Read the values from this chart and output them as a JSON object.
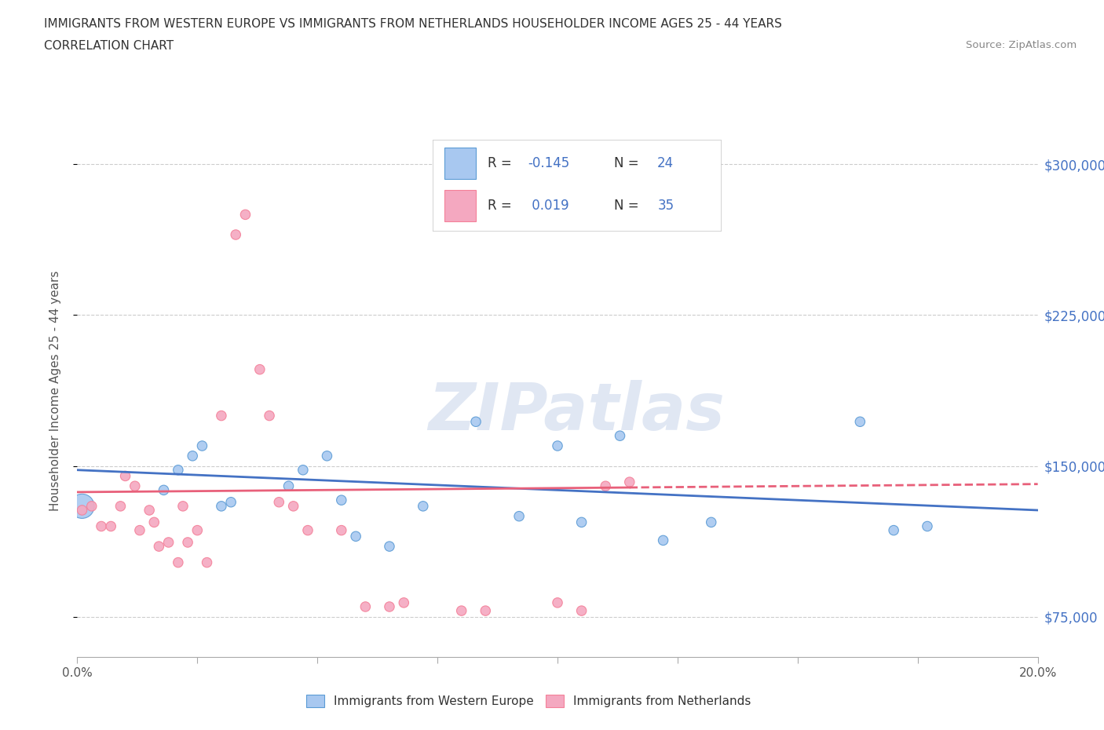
{
  "title_line1": "IMMIGRANTS FROM WESTERN EUROPE VS IMMIGRANTS FROM NETHERLANDS HOUSEHOLDER INCOME AGES 25 - 44 YEARS",
  "title_line2": "CORRELATION CHART",
  "source_text": "Source: ZipAtlas.com",
  "ylabel": "Householder Income Ages 25 - 44 years",
  "xlim": [
    0.0,
    0.2
  ],
  "ylim": [
    55000,
    320000
  ],
  "yticks": [
    75000,
    150000,
    225000,
    300000
  ],
  "xticks": [
    0.0,
    0.025,
    0.05,
    0.075,
    0.1,
    0.125,
    0.15,
    0.175,
    0.2
  ],
  "xtick_labels_ends": {
    "0.0": "0.0%",
    "0.20": "20.0%"
  },
  "ytick_labels": [
    "$75,000",
    "$150,000",
    "$225,000",
    "$300,000"
  ],
  "color_blue": "#a8c8f0",
  "color_pink": "#f4a8c0",
  "edge_blue": "#5b9bd5",
  "edge_pink": "#f48099",
  "line_blue_color": "#4472c4",
  "line_pink_color": "#e8607a",
  "legend_r_blue": "-0.145",
  "legend_n_blue": "24",
  "legend_r_pink": "0.019",
  "legend_n_pink": "35",
  "blue_x": [
    0.001,
    0.018,
    0.021,
    0.024,
    0.026,
    0.03,
    0.032,
    0.044,
    0.047,
    0.052,
    0.055,
    0.058,
    0.065,
    0.072,
    0.083,
    0.092,
    0.1,
    0.105,
    0.113,
    0.122,
    0.132,
    0.163,
    0.17,
    0.177
  ],
  "blue_y": [
    130000,
    138000,
    148000,
    155000,
    160000,
    130000,
    132000,
    140000,
    148000,
    155000,
    133000,
    115000,
    110000,
    130000,
    172000,
    125000,
    160000,
    122000,
    165000,
    113000,
    122000,
    172000,
    118000,
    120000
  ],
  "blue_size": [
    500,
    80,
    80,
    80,
    80,
    80,
    80,
    80,
    80,
    80,
    80,
    80,
    80,
    80,
    80,
    80,
    80,
    80,
    80,
    80,
    80,
    80,
    80,
    80
  ],
  "pink_x": [
    0.001,
    0.003,
    0.005,
    0.007,
    0.009,
    0.01,
    0.012,
    0.013,
    0.015,
    0.016,
    0.017,
    0.019,
    0.021,
    0.022,
    0.023,
    0.025,
    0.027,
    0.03,
    0.033,
    0.035,
    0.038,
    0.04,
    0.042,
    0.045,
    0.048,
    0.055,
    0.06,
    0.065,
    0.068,
    0.08,
    0.085,
    0.1,
    0.105,
    0.11,
    0.115
  ],
  "pink_y": [
    128000,
    130000,
    120000,
    120000,
    130000,
    145000,
    140000,
    118000,
    128000,
    122000,
    110000,
    112000,
    102000,
    130000,
    112000,
    118000,
    102000,
    175000,
    265000,
    275000,
    198000,
    175000,
    132000,
    130000,
    118000,
    118000,
    80000,
    80000,
    82000,
    78000,
    78000,
    82000,
    78000,
    140000,
    142000
  ],
  "pink_size": [
    80,
    80,
    80,
    80,
    80,
    80,
    80,
    80,
    80,
    80,
    80,
    80,
    80,
    80,
    80,
    80,
    80,
    80,
    80,
    80,
    80,
    80,
    80,
    80,
    80,
    80,
    80,
    80,
    80,
    80,
    80,
    80,
    80,
    80,
    80
  ],
  "watermark_text": "ZIPatlas",
  "label_blue": "Immigrants from Western Europe",
  "label_pink": "Immigrants from Netherlands",
  "figsize": [
    14.06,
    9.3
  ],
  "dpi": 100
}
